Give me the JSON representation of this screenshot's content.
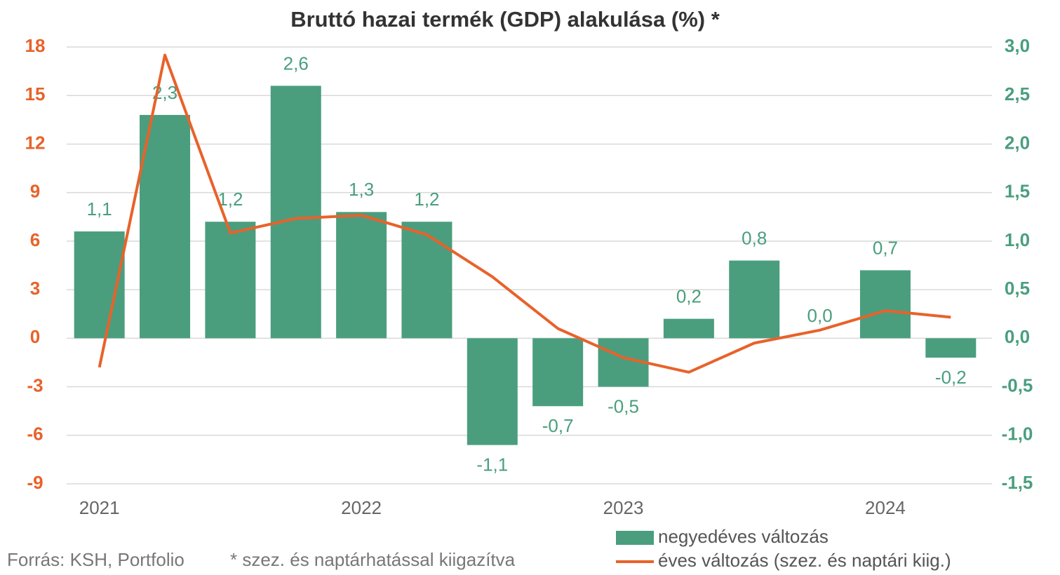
{
  "chart_data": {
    "type": "bar",
    "title": "Bruttó hazai termék (GDP) alakulása (%) *",
    "categories": [
      "2021",
      null,
      null,
      null,
      "2022",
      null,
      null,
      null,
      "2023",
      null,
      null,
      null,
      "2024",
      null
    ],
    "series": [
      {
        "name": "negyedéves változás",
        "type": "bar",
        "axis": "y2",
        "color": "#4a9e7e",
        "values": [
          1.1,
          2.3,
          1.2,
          2.6,
          1.3,
          1.2,
          -1.1,
          -0.7,
          -0.5,
          0.2,
          0.8,
          0.0,
          0.7,
          -0.2
        ],
        "value_labels": [
          "1,1",
          "2,3",
          "1,2",
          "2,6",
          "1,3",
          "1,2",
          "-1,1",
          "-0,7",
          "-0,5",
          "0,2",
          "0,8",
          "0,0",
          "0,7",
          "-0,2"
        ]
      },
      {
        "name": "éves változás (szez. és naptári kiig.)",
        "type": "line",
        "color": "#e8622a",
        "values": [
          -1.8,
          17.5,
          6.5,
          7.4,
          7.6,
          6.4,
          3.8,
          0.6,
          -1.2,
          -2.1,
          -0.3,
          0.5,
          1.7,
          1.3
        ]
      }
    ],
    "ylim": [
      -9,
      18
    ],
    "yticks": [
      -9,
      -6,
      -3,
      0,
      3,
      6,
      9,
      12,
      15,
      18
    ],
    "y2lim": [
      -1.5,
      3.0
    ],
    "y2ticks": [
      {
        "value": -1.5,
        "label": "-1,5"
      },
      {
        "value": -1.0,
        "label": "-1,0"
      },
      {
        "value": -0.5,
        "label": "-0,5"
      },
      {
        "value": 0,
        "label": "0,0"
      },
      {
        "value": 0.5,
        "label": "0,5"
      },
      {
        "value": 1.0,
        "label": "1,0"
      },
      {
        "value": 1.5,
        "label": "1,5"
      },
      {
        "value": 2.0,
        "label": "2,0"
      },
      {
        "value": 2.5,
        "label": "2,5"
      },
      {
        "value": 3.0,
        "label": "3,0"
      }
    ],
    "grid": true,
    "legend": "bottom-right",
    "source": "Forrás: KSH, Portfolio",
    "note": "* szez. és naptárhatással kiigazítva"
  }
}
